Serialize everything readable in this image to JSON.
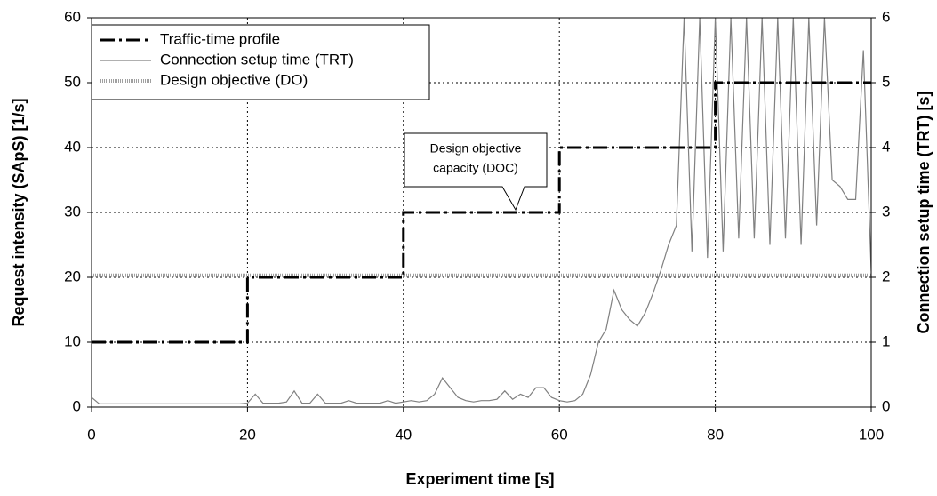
{
  "chart_data": {
    "type": "line",
    "xlabel": "Experiment time [s]",
    "ylabel": "Request intensity (SApS) [1/s]",
    "y2label": "Connection setup time (TRT) [s]",
    "xlim": [
      0,
      100
    ],
    "xticks": [
      0,
      20,
      40,
      60,
      80,
      100
    ],
    "ylim": [
      0,
      60
    ],
    "yticks": [
      0,
      10,
      20,
      30,
      40,
      50,
      60
    ],
    "y2lim": [
      0,
      6
    ],
    "y2ticks": [
      0,
      1,
      2,
      3,
      4,
      5,
      6
    ],
    "grid": true,
    "legend": "upper left",
    "annotation": [
      "Design objective",
      "capacity (DOC)"
    ],
    "series": [
      {
        "name": "Traffic-time profile",
        "color": "#000000",
        "x": [
          0,
          20,
          20,
          40,
          40,
          60,
          60,
          80,
          80,
          100
        ],
        "values": [
          10,
          10,
          20,
          20,
          30,
          30,
          40,
          40,
          50,
          50
        ]
      },
      {
        "name": "Connection setup time (TRT)",
        "color": "#808080",
        "axis": "y2",
        "x": [
          0,
          1,
          2,
          3,
          4,
          5,
          6,
          7,
          8,
          9,
          10,
          11,
          12,
          13,
          14,
          15,
          16,
          17,
          18,
          19,
          20,
          21,
          22,
          23,
          24,
          25,
          26,
          27,
          28,
          29,
          30,
          31,
          32,
          33,
          34,
          35,
          36,
          37,
          38,
          39,
          40,
          41,
          42,
          43,
          44,
          45,
          46,
          47,
          48,
          49,
          50,
          51,
          52,
          53,
          54,
          55,
          56,
          57,
          58,
          59,
          60,
          61,
          62,
          63,
          64,
          65,
          66,
          67,
          68,
          69,
          70,
          71,
          72,
          73,
          74,
          75,
          76,
          77,
          78,
          79,
          80,
          81,
          82,
          83,
          84,
          85,
          86,
          87,
          88,
          89,
          90,
          91,
          92,
          93,
          94,
          95,
          96,
          97,
          98,
          99,
          100
        ],
        "values": [
          0.15,
          0.05,
          0.05,
          0.05,
          0.05,
          0.05,
          0.05,
          0.05,
          0.05,
          0.05,
          0.05,
          0.05,
          0.05,
          0.05,
          0.05,
          0.05,
          0.05,
          0.05,
          0.05,
          0.05,
          0.06,
          0.2,
          0.06,
          0.06,
          0.06,
          0.08,
          0.25,
          0.06,
          0.06,
          0.2,
          0.06,
          0.06,
          0.06,
          0.1,
          0.06,
          0.06,
          0.06,
          0.06,
          0.1,
          0.06,
          0.08,
          0.1,
          0.08,
          0.1,
          0.2,
          0.45,
          0.3,
          0.15,
          0.1,
          0.08,
          0.1,
          0.1,
          0.12,
          0.25,
          0.12,
          0.2,
          0.15,
          0.3,
          0.3,
          0.15,
          0.1,
          0.08,
          0.1,
          0.2,
          0.5,
          1.0,
          1.2,
          1.8,
          1.5,
          1.35,
          1.25,
          1.45,
          1.75,
          2.1,
          2.5,
          2.8,
          6,
          2.4,
          6,
          2.3,
          6,
          2.4,
          6,
          2.6,
          6,
          2.6,
          6,
          2.5,
          6,
          2.6,
          6,
          2.5,
          6,
          2.8,
          6,
          3.5,
          3.4,
          3.2,
          3.2,
          5.5,
          2.1
        ]
      },
      {
        "name": "Design objective (DO)",
        "color": "#a0a0a0",
        "axis": "y2",
        "x": [
          0,
          100
        ],
        "values": [
          2.03,
          2.03
        ]
      }
    ]
  }
}
